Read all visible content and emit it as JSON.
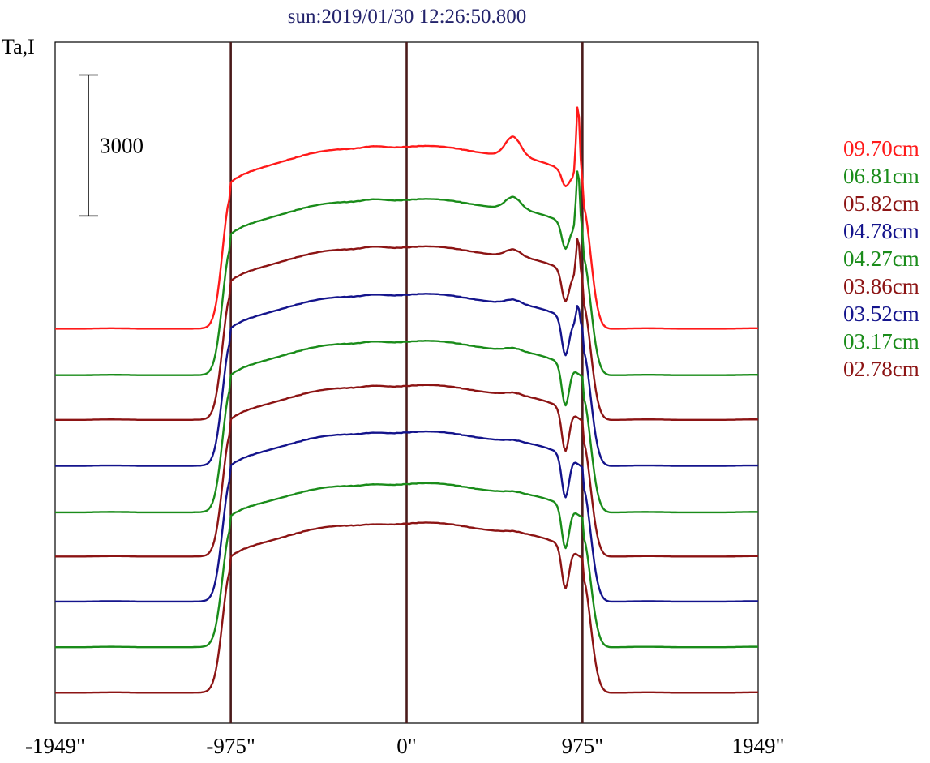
{
  "chart_data": {
    "type": "line",
    "title": "sun:2019/01/30 12:26:50.800",
    "ylabel": "Ta,I",
    "xlim": [
      -1949,
      1949
    ],
    "x_ticks": [
      {
        "value": -1949,
        "label": "-1949\""
      },
      {
        "value": -975,
        "label": "-975\""
      },
      {
        "value": 0,
        "label": "0\""
      },
      {
        "value": 975,
        "label": "975\""
      },
      {
        "value": 1949,
        "label": "1949\""
      }
    ],
    "reference_lines_x": [
      -975,
      0,
      975
    ],
    "reference_line_color": "#4a1a1a",
    "scale_bar": {
      "value": 3000,
      "label": "3000"
    },
    "legend_position": "right",
    "series_stacked_top_to_bottom": true,
    "series": [
      {
        "name": "09.70cm",
        "color": "#ff1a1a",
        "baseline": 7200,
        "peak_height": 3870,
        "limb_peak": 4350,
        "dip_depth": 300,
        "left_bump": 60,
        "right_bump": 420
      },
      {
        "name": "06.81cm",
        "color": "#1a8c1a",
        "baseline": 6210,
        "peak_height": 3730,
        "limb_peak": 3980,
        "dip_depth": 520,
        "left_bump": 60,
        "right_bump": 260
      },
      {
        "name": "05.82cm",
        "color": "#8c1414",
        "baseline": 5260,
        "peak_height": 3670,
        "limb_peak": 3470,
        "dip_depth": 640,
        "left_bump": 60,
        "right_bump": 150
      },
      {
        "name": "04.78cm",
        "color": "#14148c",
        "baseline": 4280,
        "peak_height": 3640,
        "limb_peak": 3010,
        "dip_depth": 780,
        "left_bump": 50,
        "right_bump": 90
      },
      {
        "name": "04.27cm",
        "color": "#1a8c1a",
        "baseline": 3290,
        "peak_height": 3630,
        "limb_peak": 2410,
        "dip_depth": 850,
        "left_bump": 50,
        "right_bump": 60
      },
      {
        "name": "03.86cm",
        "color": "#8c1414",
        "baseline": 2350,
        "peak_height": 3630,
        "limb_peak": 1930,
        "dip_depth": 880,
        "left_bump": 50,
        "right_bump": 50
      },
      {
        "name": "03.52cm",
        "color": "#14148c",
        "baseline": 1390,
        "peak_height": 3600,
        "limb_peak": 1480,
        "dip_depth": 880,
        "left_bump": 40,
        "right_bump": 30
      },
      {
        "name": "03.17cm",
        "color": "#1a8c1a",
        "baseline": 420,
        "peak_height": 3470,
        "limb_peak": 1060,
        "dip_depth": 880,
        "left_bump": 40,
        "right_bump": 30
      },
      {
        "name": "02.78cm",
        "color": "#8c1414",
        "baseline": -550,
        "peak_height": 3600,
        "limb_peak": 840,
        "dip_depth": 880,
        "left_bump": 30,
        "right_bump": 30
      }
    ],
    "ylim": [
      -1200,
      13300
    ]
  }
}
